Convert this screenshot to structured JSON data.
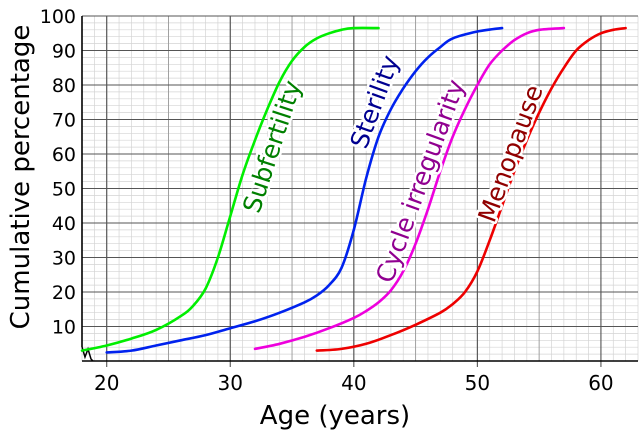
{
  "chart_data": {
    "type": "line",
    "xlabel": "Age (years)",
    "ylabel": "Cumulative percentage",
    "xlim": [
      18,
      63
    ],
    "ylim": [
      0,
      100
    ],
    "xticks": [
      20,
      30,
      40,
      50,
      60
    ],
    "yticks": [
      10,
      20,
      30,
      40,
      50,
      60,
      70,
      80,
      90,
      100
    ],
    "grid": true,
    "series": [
      {
        "name": "Subfertility",
        "color": "#00ee00",
        "label_color": "#008000",
        "label_at": [
          33.5,
          62
        ],
        "label_angle": -72,
        "points": [
          [
            18,
            3
          ],
          [
            20,
            4.5
          ],
          [
            22,
            6.5
          ],
          [
            24,
            9
          ],
          [
            26,
            13
          ],
          [
            27,
            16
          ],
          [
            28,
            21
          ],
          [
            29,
            30
          ],
          [
            30,
            42
          ],
          [
            31,
            54
          ],
          [
            32,
            64
          ],
          [
            33,
            73
          ],
          [
            34,
            81
          ],
          [
            35,
            87
          ],
          [
            36,
            91
          ],
          [
            37,
            93.5
          ],
          [
            38,
            95
          ],
          [
            39,
            96
          ],
          [
            40,
            96.5
          ],
          [
            42,
            96.5
          ]
        ]
      },
      {
        "name": "Sterility",
        "color": "#0022ee",
        "label_color": "#000090",
        "label_at": [
          41.8,
          75
        ],
        "label_angle": -70,
        "points": [
          [
            20,
            2.5
          ],
          [
            22,
            3
          ],
          [
            24,
            4.5
          ],
          [
            26,
            6
          ],
          [
            28,
            7.5
          ],
          [
            30,
            9.5
          ],
          [
            32,
            11.5
          ],
          [
            34,
            14
          ],
          [
            36,
            17
          ],
          [
            37,
            19
          ],
          [
            38,
            22
          ],
          [
            39,
            27
          ],
          [
            40,
            38
          ],
          [
            41,
            53
          ],
          [
            42,
            65
          ],
          [
            43,
            73
          ],
          [
            44,
            79
          ],
          [
            45,
            84
          ],
          [
            46,
            88
          ],
          [
            47,
            91
          ],
          [
            48,
            93.5
          ],
          [
            50,
            95.5
          ],
          [
            52,
            96.5
          ]
        ]
      },
      {
        "name": "Cycle irregularity",
        "color": "#ee00dd",
        "label_color": "#900090",
        "label_at": [
          45.5,
          52
        ],
        "label_angle": -70,
        "points": [
          [
            32,
            3.5
          ],
          [
            34,
            5
          ],
          [
            36,
            7
          ],
          [
            38,
            9.5
          ],
          [
            40,
            12.5
          ],
          [
            41,
            14.5
          ],
          [
            42,
            17
          ],
          [
            43,
            20.5
          ],
          [
            44,
            26
          ],
          [
            45,
            34
          ],
          [
            46,
            44
          ],
          [
            47,
            55
          ],
          [
            48,
            65
          ],
          [
            49,
            73
          ],
          [
            50,
            80
          ],
          [
            51,
            86
          ],
          [
            52,
            90
          ],
          [
            53,
            93
          ],
          [
            54,
            95
          ],
          [
            55,
            96
          ],
          [
            57,
            96.5
          ]
        ]
      },
      {
        "name": "Menopause",
        "color": "#ee0000",
        "label_color": "#900000",
        "label_at": [
          52.8,
          60
        ],
        "label_angle": -70,
        "points": [
          [
            37,
            3
          ],
          [
            39,
            3.5
          ],
          [
            41,
            5
          ],
          [
            43,
            7.5
          ],
          [
            45,
            10.5
          ],
          [
            47,
            14
          ],
          [
            48,
            16.5
          ],
          [
            49,
            20
          ],
          [
            50,
            26
          ],
          [
            51,
            35
          ],
          [
            52,
            45
          ],
          [
            53,
            55
          ],
          [
            54,
            64
          ],
          [
            55,
            72
          ],
          [
            56,
            79
          ],
          [
            57,
            85
          ],
          [
            58,
            90
          ],
          [
            59,
            93
          ],
          [
            60,
            95
          ],
          [
            61,
            96
          ],
          [
            62,
            96.5
          ]
        ]
      }
    ]
  }
}
